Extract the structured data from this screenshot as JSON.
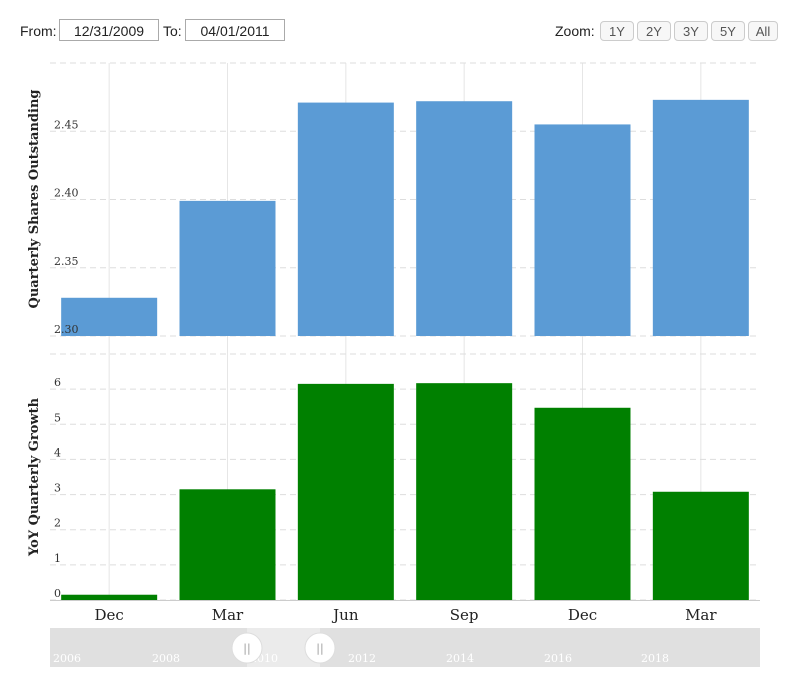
{
  "range": {
    "from_label": "From:",
    "from_value": "12/31/2009",
    "to_label": "To:",
    "to_value": "04/01/2011"
  },
  "zoom": {
    "label": "Zoom:",
    "buttons": [
      "1Y",
      "2Y",
      "3Y",
      "5Y",
      "All"
    ]
  },
  "colors": {
    "shares_bar": "#5b9bd5",
    "growth_bar": "#008000",
    "grid": "#dddddd",
    "navigator_bg": "#e0e0e0"
  },
  "chart_data": [
    {
      "type": "bar",
      "ylabel": "Quarterly Shares Outstanding",
      "categories": [
        "Dec",
        "Mar",
        "Jun",
        "Sep",
        "Dec",
        "Mar"
      ],
      "values": [
        2.328,
        2.399,
        2.471,
        2.472,
        2.455,
        2.473
      ],
      "ylim": [
        2.3,
        2.5
      ],
      "yticks": [
        "2.30",
        "2.35",
        "2.40",
        "2.45"
      ],
      "grid": true
    },
    {
      "type": "bar",
      "ylabel": "YoY Quarterly Growth",
      "categories": [
        "Dec",
        "Mar",
        "Jun",
        "Sep",
        "Dec",
        "Mar"
      ],
      "values": [
        0.15,
        3.15,
        6.15,
        6.17,
        5.47,
        3.08
      ],
      "ylim": [
        0,
        7
      ],
      "yticks": [
        "0",
        "1",
        "2",
        "3",
        "4",
        "5",
        "6"
      ],
      "grid": true
    }
  ],
  "navigator": {
    "year_labels": [
      "2006",
      "2008",
      "2010",
      "2012",
      "2014",
      "2016",
      "2018"
    ],
    "handle_glyph": "||"
  }
}
